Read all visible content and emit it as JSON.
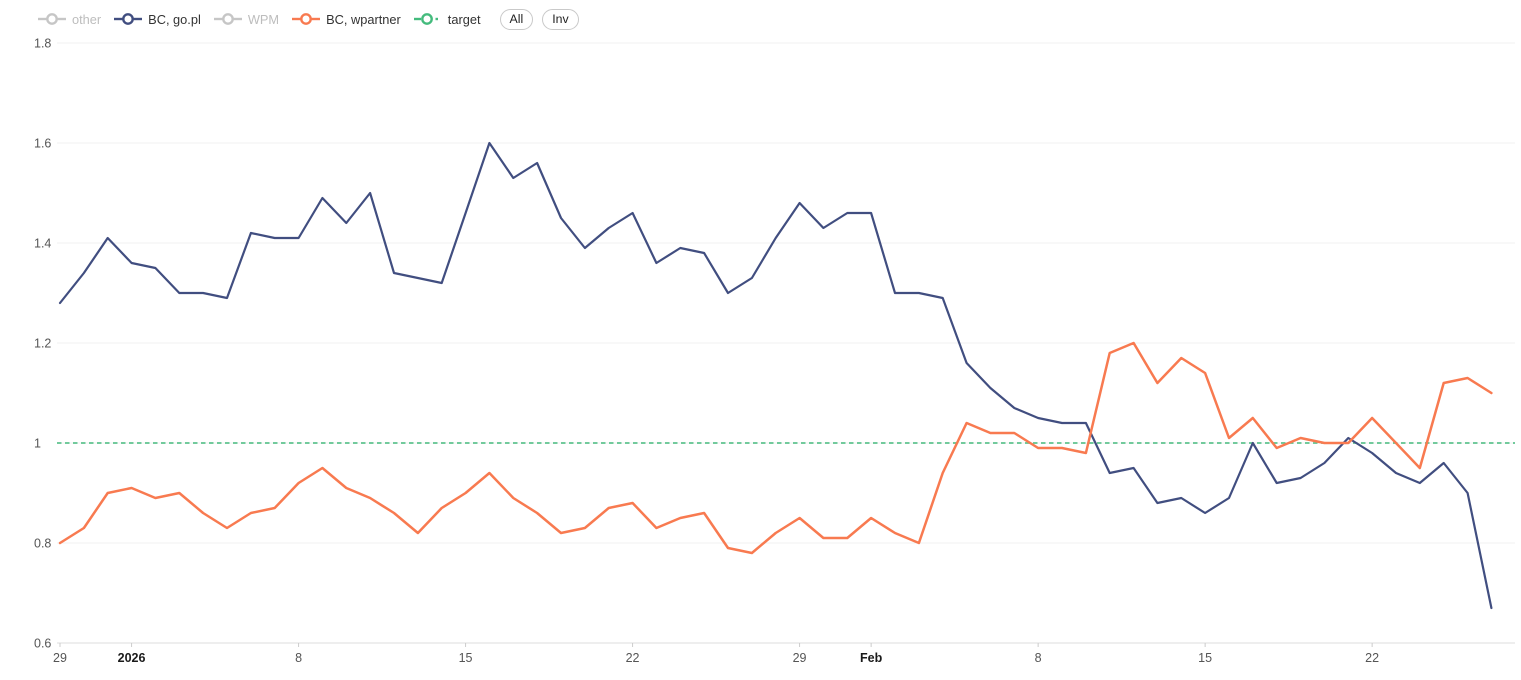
{
  "legend": {
    "items": [
      {
        "label": "other",
        "color": "#c6c6c6",
        "text_color": "#bdbdbd",
        "disabled": true,
        "style": "solid"
      },
      {
        "label": "BC, go.pl",
        "color": "#414e80",
        "text_color": "#333333",
        "disabled": false,
        "style": "solid"
      },
      {
        "label": "WPM",
        "color": "#c6c6c6",
        "text_color": "#bdbdbd",
        "disabled": true,
        "style": "solid"
      },
      {
        "label": "BC, wpartner",
        "color": "#f87a50",
        "text_color": "#333333",
        "disabled": false,
        "style": "solid"
      },
      {
        "label": "target",
        "color": "#44bb7d",
        "text_color": "#333333",
        "disabled": false,
        "style": "dashed"
      }
    ],
    "buttons": [
      {
        "label": "All"
      },
      {
        "label": "Inv"
      }
    ]
  },
  "chart_data": {
    "type": "line",
    "title": "",
    "xlabel": "",
    "ylabel": "",
    "legend_position": "top",
    "grid": "horizontal",
    "x_axis": {
      "unit": "day",
      "start_label": "Dec 29",
      "num_points": 61,
      "tick_labels": [
        {
          "label": "29",
          "day": 0,
          "bold": false
        },
        {
          "label": "2026",
          "day": 3,
          "bold": true
        },
        {
          "label": "8",
          "day": 10,
          "bold": false
        },
        {
          "label": "15",
          "day": 17,
          "bold": false
        },
        {
          "label": "22",
          "day": 24,
          "bold": false
        },
        {
          "label": "29",
          "day": 31,
          "bold": false
        },
        {
          "label": "Feb",
          "day": 34,
          "bold": true
        },
        {
          "label": "8",
          "day": 41,
          "bold": false
        },
        {
          "label": "15",
          "day": 48,
          "bold": false
        },
        {
          "label": "22",
          "day": 55,
          "bold": false
        }
      ]
    },
    "y_axis": {
      "ticks": [
        "1.8",
        "1.6",
        "1.4",
        "1.2",
        "1",
        "0.8",
        "0.6"
      ],
      "tick_values": [
        1.8,
        1.6,
        1.4,
        1.2,
        1.0,
        0.8,
        0.6
      ],
      "range": [
        0.6,
        1.8
      ]
    },
    "target_line": {
      "label": "target",
      "value": 1.0,
      "color": "#44bb7d",
      "dashed": true
    },
    "series": [
      {
        "name": "BC, go.pl",
        "color": "#414e80",
        "width": 2.2,
        "values": [
          1.28,
          1.34,
          1.41,
          1.36,
          1.35,
          1.3,
          1.3,
          1.29,
          1.42,
          1.41,
          1.41,
          1.49,
          1.44,
          1.5,
          1.34,
          1.33,
          1.32,
          1.46,
          1.6,
          1.53,
          1.56,
          1.45,
          1.39,
          1.43,
          1.46,
          1.36,
          1.39,
          1.38,
          1.3,
          1.33,
          1.41,
          1.48,
          1.43,
          1.46,
          1.46,
          1.3,
          1.3,
          1.29,
          1.16,
          1.11,
          1.07,
          1.05,
          1.04,
          1.04,
          0.94,
          0.95,
          0.88,
          0.89,
          0.86,
          0.89,
          1.0,
          0.92,
          0.93,
          0.96,
          1.01,
          0.98,
          0.94,
          0.92,
          0.96,
          0.9,
          0.67
        ]
      },
      {
        "name": "BC, wpartner",
        "color": "#f87a50",
        "width": 2.5,
        "values": [
          0.8,
          0.83,
          0.9,
          0.91,
          0.89,
          0.9,
          0.86,
          0.83,
          0.86,
          0.87,
          0.92,
          0.95,
          0.91,
          0.89,
          0.86,
          0.82,
          0.87,
          0.9,
          0.94,
          0.89,
          0.86,
          0.82,
          0.83,
          0.87,
          0.88,
          0.83,
          0.85,
          0.86,
          0.79,
          0.78,
          0.82,
          0.85,
          0.81,
          0.81,
          0.85,
          0.82,
          0.8,
          0.94,
          1.04,
          1.02,
          1.02,
          0.99,
          0.99,
          0.98,
          1.18,
          1.2,
          1.12,
          1.17,
          1.14,
          1.01,
          1.05,
          0.99,
          1.01,
          1.0,
          1.0,
          1.05,
          1.0,
          0.95,
          1.12,
          1.13,
          1.1
        ]
      }
    ],
    "axis_text_color": "#555555",
    "axis_bold_text_color": "#1a1a1a",
    "gridline_color": "#f0f0f0",
    "axis_line_color": "#dcdcdc"
  }
}
